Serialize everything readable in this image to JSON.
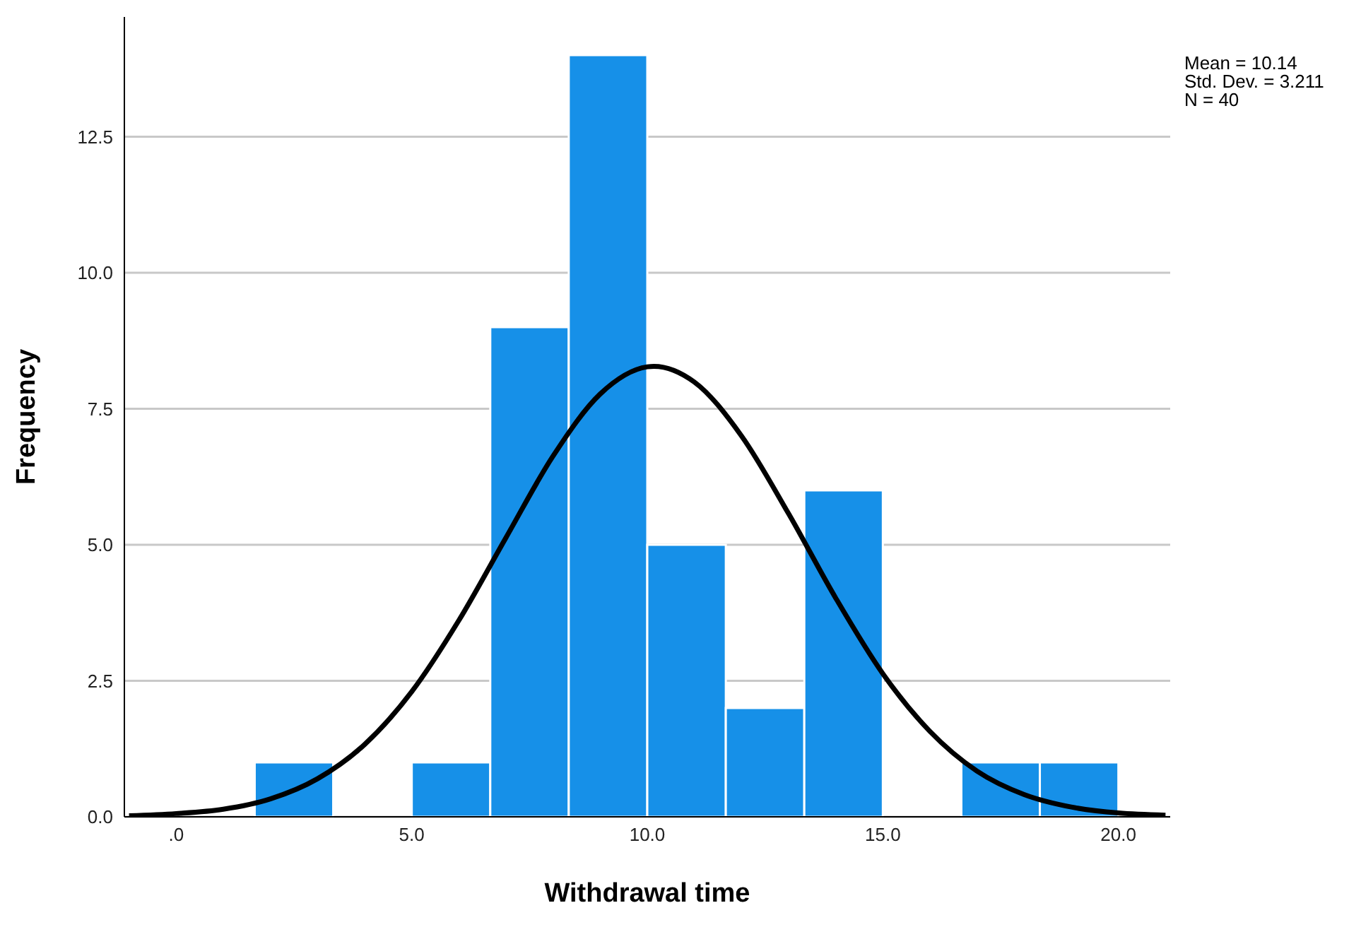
{
  "chart_data": {
    "type": "histogram",
    "xlabel": "Withdrawal time",
    "ylabel": "Frequency",
    "bins": [
      1.667,
      3.333,
      5,
      6.667,
      8.333,
      10,
      11.667,
      13.333,
      15,
      16.667,
      18.333,
      20
    ],
    "values": [
      1,
      0,
      1,
      9,
      14,
      5,
      2,
      6,
      0,
      1,
      1
    ],
    "color": "#1690e8",
    "series": [
      {
        "type": "line",
        "color": "#000000",
        "x": [
          -1,
          0,
          1,
          2,
          3,
          4,
          5,
          6,
          7,
          8,
          9,
          10,
          10.14,
          11,
          12,
          13,
          14,
          15,
          16,
          17,
          18,
          19,
          20,
          21
        ],
        "values": [
          0.02,
          0.06,
          0.14,
          0.33,
          0.7,
          1.33,
          2.3,
          3.61,
          5.13,
          6.63,
          7.77,
          8.27,
          8.28,
          7.99,
          7.0,
          5.57,
          4.02,
          2.63,
          1.57,
          0.84,
          0.41,
          0.18,
          0.07,
          0.03
        ]
      }
    ],
    "xlim": [
      -1.1,
      21.1
    ],
    "xticks": [
      {
        "value": 0,
        "label": ".0"
      },
      {
        "value": 5,
        "label": "5.0"
      },
      {
        "value": 10,
        "label": "10.0"
      },
      {
        "value": 15,
        "label": "15.0"
      },
      {
        "value": 20,
        "label": "20.0"
      }
    ],
    "ylim": [
      0,
      14.7
    ],
    "yticks": [
      {
        "value": 0,
        "label": "0.0"
      },
      {
        "value": 2.5,
        "label": "2.5"
      },
      {
        "value": 5,
        "label": "5.0"
      },
      {
        "value": 7.5,
        "label": "7.5"
      },
      {
        "value": 10,
        "label": "10.0"
      },
      {
        "value": 12.5,
        "label": "12.5"
      }
    ],
    "grid": "y",
    "legend": false,
    "marker": "none",
    "line_style": "solid",
    "annotations": [
      "Mean = 10.14",
      "Std. Dev. = 3.211",
      "N = 40"
    ]
  }
}
